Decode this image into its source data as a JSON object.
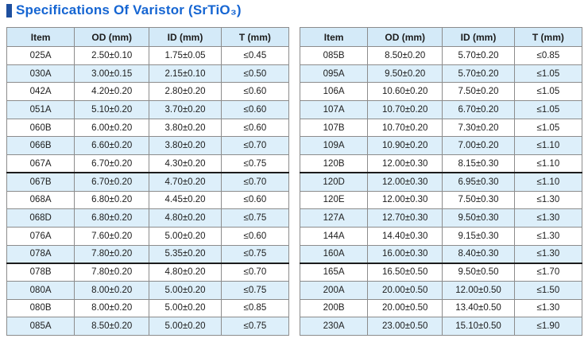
{
  "title": {
    "text": "Specifications Of Varistor (SrTiO₃)"
  },
  "colors": {
    "accent_bar": "#1e4f9e",
    "title_text": "#1565d2",
    "header_bg": "#d4eaf8",
    "stripe_bg": "#ddeffa",
    "outer_border": "#3f3f3f",
    "inner_border": "#8c8c8c"
  },
  "tables": [
    {
      "headers": [
        "Item",
        "OD (mm)",
        "ID (mm)",
        "T (mm)"
      ],
      "thick_top_rows": [
        7,
        12
      ],
      "rows": [
        [
          "025A",
          "2.50±0.10",
          "1.75±0.05",
          "≤0.45"
        ],
        [
          "030A",
          "3.00±0.15",
          "2.15±0.10",
          "≤0.50"
        ],
        [
          "042A",
          "4.20±0.20",
          "2.80±0.20",
          "≤0.60"
        ],
        [
          "051A",
          "5.10±0.20",
          "3.70±0.20",
          "≤0.60"
        ],
        [
          "060B",
          "6.00±0.20",
          "3.80±0.20",
          "≤0.60"
        ],
        [
          "066B",
          "6.60±0.20",
          "3.80±0.20",
          "≤0.70"
        ],
        [
          "067A",
          "6.70±0.20",
          "4.30±0.20",
          "≤0.75"
        ],
        [
          "067B",
          "6.70±0.20",
          "4.70±0.20",
          "≤0.70"
        ],
        [
          "068A",
          "6.80±0.20",
          "4.45±0.20",
          "≤0.60"
        ],
        [
          "068D",
          "6.80±0.20",
          "4.80±0.20",
          "≤0.75"
        ],
        [
          "076A",
          "7.60±0.20",
          "5.00±0.20",
          "≤0.60"
        ],
        [
          "078A",
          "7.80±0.20",
          "5.35±0.20",
          "≤0.75"
        ],
        [
          "078B",
          "7.80±0.20",
          "4.80±0.20",
          "≤0.70"
        ],
        [
          "080A",
          "8.00±0.20",
          "5.00±0.20",
          "≤0.75"
        ],
        [
          "080B",
          "8.00±0.20",
          "5.00±0.20",
          "≤0.85"
        ],
        [
          "085A",
          "8.50±0.20",
          "5.00±0.20",
          "≤0.75"
        ]
      ]
    },
    {
      "headers": [
        "Item",
        "OD (mm)",
        "ID (mm)",
        "T (mm)"
      ],
      "thick_top_rows": [
        7,
        12
      ],
      "rows": [
        [
          "085B",
          "8.50±0.20",
          "5.70±0.20",
          "≤0.85"
        ],
        [
          "095A",
          "9.50±0.20",
          "5.70±0.20",
          "≤1.05"
        ],
        [
          "106A",
          "10.60±0.20",
          "7.50±0.20",
          "≤1.05"
        ],
        [
          "107A",
          "10.70±0.20",
          "6.70±0.20",
          "≤1.05"
        ],
        [
          "107B",
          "10.70±0.20",
          "7.30±0.20",
          "≤1.05"
        ],
        [
          "109A",
          "10.90±0.20",
          "7.00±0.20",
          "≤1.10"
        ],
        [
          "120B",
          "12.00±0.30",
          "8.15±0.30",
          "≤1.10"
        ],
        [
          "120D",
          "12.00±0.30",
          "6.95±0.30",
          "≤1.10"
        ],
        [
          "120E",
          "12.00±0.30",
          "7.50±0.30",
          "≤1.30"
        ],
        [
          "127A",
          "12.70±0.30",
          "9.50±0.30",
          "≤1.30"
        ],
        [
          "144A",
          "14.40±0.30",
          "9.15±0.30",
          "≤1.30"
        ],
        [
          "160A",
          "16.00±0.30",
          "8.40±0.30",
          "≤1.30"
        ],
        [
          "165A",
          "16.50±0.50",
          "9.50±0.50",
          "≤1.70"
        ],
        [
          "200A",
          "20.00±0.50",
          "12.00±0.50",
          "≤1.50"
        ],
        [
          "200B",
          "20.00±0.50",
          "13.40±0.50",
          "≤1.30"
        ],
        [
          "230A",
          "23.00±0.50",
          "15.10±0.50",
          "≤1.90"
        ]
      ]
    }
  ]
}
